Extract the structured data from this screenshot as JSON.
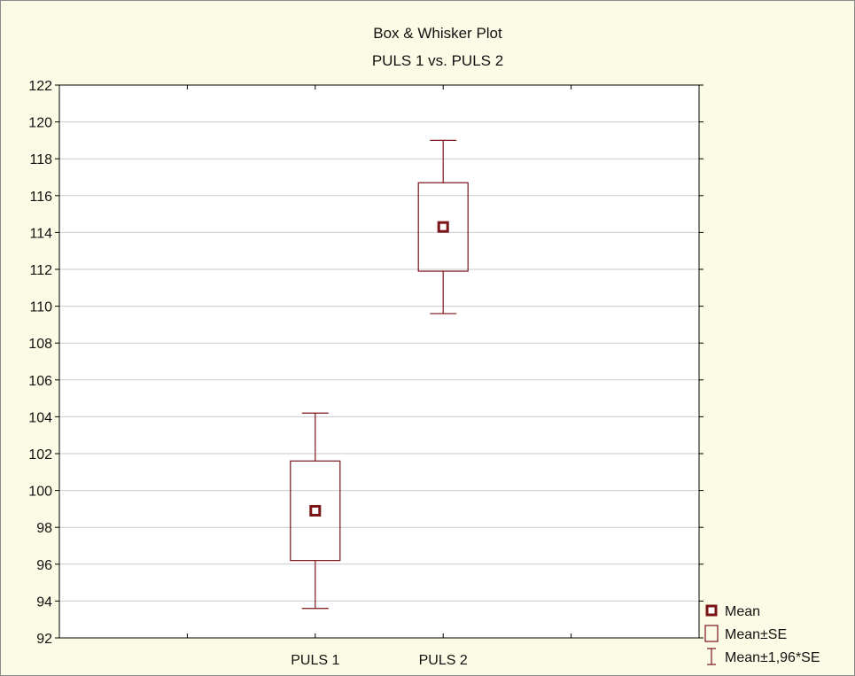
{
  "chart_data": {
    "type": "box",
    "title": "Box & Whisker Plot",
    "subtitle": "PULS 1 vs. PULS 2",
    "xlabel": "",
    "ylabel": "",
    "categories": [
      "PULS 1",
      "PULS 2"
    ],
    "ylim": [
      92,
      122
    ],
    "yticks": [
      92,
      94,
      96,
      98,
      100,
      102,
      104,
      106,
      108,
      110,
      112,
      114,
      116,
      118,
      120,
      122
    ],
    "grid": true,
    "legend_position": "bottom-right",
    "color": "#7b1416",
    "boxes": [
      {
        "name": "PULS 1",
        "mean": 98.9,
        "se_low": 96.2,
        "se_high": 101.6,
        "ci_low": 93.6,
        "ci_high": 104.2
      },
      {
        "name": "PULS 2",
        "mean": 114.3,
        "se_low": 111.9,
        "se_high": 116.7,
        "ci_low": 109.6,
        "ci_high": 119.0
      }
    ],
    "legend": [
      {
        "symbol": "mean",
        "label": "Mean"
      },
      {
        "symbol": "box",
        "label": "Mean±SE"
      },
      {
        "symbol": "whisker",
        "label": "Mean±1,96*SE"
      }
    ]
  }
}
